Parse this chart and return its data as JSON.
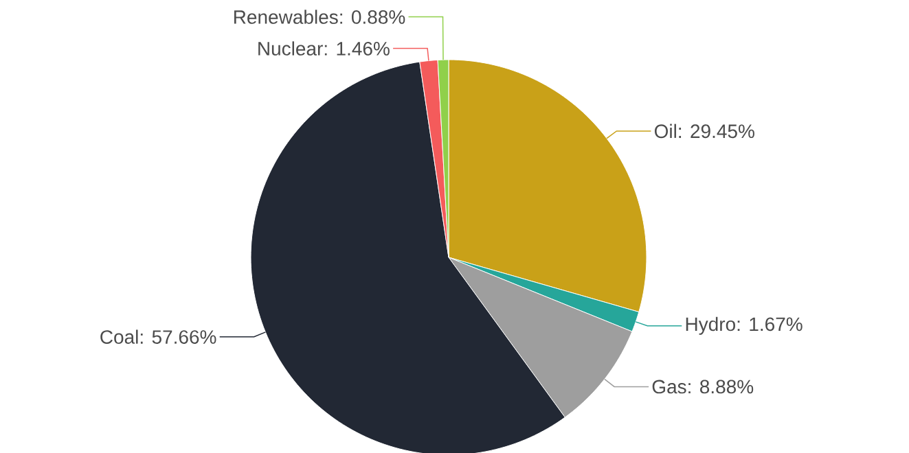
{
  "chart_data": {
    "type": "pie",
    "categories": [
      null,
      null,
      null,
      null,
      null,
      null
    ],
    "values": [
      29.45,
      1.67,
      8.88,
      57.66,
      1.46,
      0.88
    ],
    "value_labels": [
      "Oil: 29.45%",
      "Hydro: 1.67%",
      "Gas: 8.88%",
      "Coal: 57.66%",
      "Nuclear: 1.46%",
      "Renewables: 0.88%"
    ],
    "colors": [
      "#c9a118",
      "#26a69a",
      "#9e9e9e",
      "#222834",
      "#f45b5b",
      "#90d04a"
    ]
  }
}
